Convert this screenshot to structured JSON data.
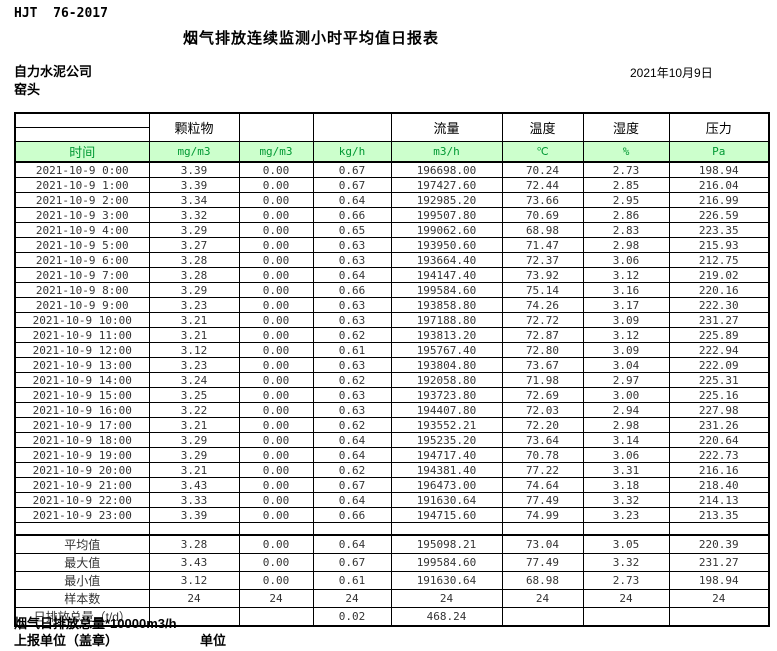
{
  "page": {
    "standard": "HJT  76-2017",
    "title": "烟气排放连续监测小时平均值日报表",
    "company": "自力水泥公司",
    "station": "窑头",
    "date": "2021年10月9日"
  },
  "colors": {
    "header_bg": "#ccffcc",
    "header_text": "#009933",
    "border": "#000000",
    "body_text": "#333333"
  },
  "table": {
    "time_header": "时间",
    "columns": [
      {
        "name": "颗粒物",
        "unit": "mg/m3"
      },
      {
        "name": "",
        "unit": "mg/m3"
      },
      {
        "name": "",
        "unit": "kg/h"
      },
      {
        "name": "流量",
        "unit": "m3/h"
      },
      {
        "name": "温度",
        "unit": "℃"
      },
      {
        "name": "湿度",
        "unit": "%"
      },
      {
        "name": "压力",
        "unit": "Pa"
      }
    ],
    "rows": [
      {
        "time": "2021-10-9 0:00",
        "values": [
          "3.39",
          "0.00",
          "0.67",
          "196698.00",
          "70.24",
          "2.73",
          "198.94"
        ]
      },
      {
        "time": "2021-10-9 1:00",
        "values": [
          "3.39",
          "0.00",
          "0.67",
          "197427.60",
          "72.44",
          "2.85",
          "216.04"
        ]
      },
      {
        "time": "2021-10-9 2:00",
        "values": [
          "3.34",
          "0.00",
          "0.64",
          "192985.20",
          "73.66",
          "2.95",
          "216.99"
        ]
      },
      {
        "time": "2021-10-9 3:00",
        "values": [
          "3.32",
          "0.00",
          "0.66",
          "199507.80",
          "70.69",
          "2.86",
          "226.59"
        ]
      },
      {
        "time": "2021-10-9 4:00",
        "values": [
          "3.29",
          "0.00",
          "0.65",
          "199062.60",
          "68.98",
          "2.83",
          "223.35"
        ]
      },
      {
        "time": "2021-10-9 5:00",
        "values": [
          "3.27",
          "0.00",
          "0.63",
          "193950.60",
          "71.47",
          "2.98",
          "215.93"
        ]
      },
      {
        "time": "2021-10-9 6:00",
        "values": [
          "3.28",
          "0.00",
          "0.63",
          "193664.40",
          "72.37",
          "3.06",
          "212.75"
        ]
      },
      {
        "time": "2021-10-9 7:00",
        "values": [
          "3.28",
          "0.00",
          "0.64",
          "194147.40",
          "73.92",
          "3.12",
          "219.02"
        ]
      },
      {
        "time": "2021-10-9 8:00",
        "values": [
          "3.29",
          "0.00",
          "0.66",
          "199584.60",
          "75.14",
          "3.16",
          "220.16"
        ]
      },
      {
        "time": "2021-10-9 9:00",
        "values": [
          "3.23",
          "0.00",
          "0.63",
          "193858.80",
          "74.26",
          "3.17",
          "222.30"
        ]
      },
      {
        "time": "2021-10-9 10:00",
        "values": [
          "3.21",
          "0.00",
          "0.63",
          "197188.80",
          "72.72",
          "3.09",
          "231.27"
        ]
      },
      {
        "time": "2021-10-9 11:00",
        "values": [
          "3.21",
          "0.00",
          "0.62",
          "193813.20",
          "72.87",
          "3.12",
          "225.89"
        ]
      },
      {
        "time": "2021-10-9 12:00",
        "values": [
          "3.12",
          "0.00",
          "0.61",
          "195767.40",
          "72.80",
          "3.09",
          "222.94"
        ]
      },
      {
        "time": "2021-10-9 13:00",
        "values": [
          "3.23",
          "0.00",
          "0.63",
          "193804.80",
          "73.67",
          "3.04",
          "222.09"
        ]
      },
      {
        "time": "2021-10-9 14:00",
        "values": [
          "3.24",
          "0.00",
          "0.62",
          "192058.80",
          "71.98",
          "2.97",
          "225.31"
        ]
      },
      {
        "time": "2021-10-9 15:00",
        "values": [
          "3.25",
          "0.00",
          "0.63",
          "193723.80",
          "72.69",
          "3.00",
          "225.16"
        ]
      },
      {
        "time": "2021-10-9 16:00",
        "values": [
          "3.22",
          "0.00",
          "0.63",
          "194407.80",
          "72.03",
          "2.94",
          "227.98"
        ]
      },
      {
        "time": "2021-10-9 17:00",
        "values": [
          "3.21",
          "0.00",
          "0.62",
          "193552.21",
          "72.20",
          "2.98",
          "231.26"
        ]
      },
      {
        "time": "2021-10-9 18:00",
        "values": [
          "3.29",
          "0.00",
          "0.64",
          "195235.20",
          "73.64",
          "3.14",
          "220.64"
        ]
      },
      {
        "time": "2021-10-9 19:00",
        "values": [
          "3.29",
          "0.00",
          "0.64",
          "194717.40",
          "70.78",
          "3.06",
          "222.73"
        ]
      },
      {
        "time": "2021-10-9 20:00",
        "values": [
          "3.21",
          "0.00",
          "0.62",
          "194381.40",
          "77.22",
          "3.31",
          "216.16"
        ]
      },
      {
        "time": "2021-10-9 21:00",
        "values": [
          "3.43",
          "0.00",
          "0.67",
          "196473.00",
          "74.64",
          "3.18",
          "218.40"
        ]
      },
      {
        "time": "2021-10-9 22:00",
        "values": [
          "3.33",
          "0.00",
          "0.64",
          "191630.64",
          "77.49",
          "3.32",
          "214.13"
        ]
      },
      {
        "time": "2021-10-9 23:00",
        "values": [
          "3.39",
          "0.00",
          "0.66",
          "194715.60",
          "74.99",
          "3.23",
          "213.35"
        ]
      }
    ],
    "summary": [
      {
        "label": "平均值",
        "values": [
          "3.28",
          "0.00",
          "0.64",
          "195098.21",
          "73.04",
          "3.05",
          "220.39"
        ]
      },
      {
        "label": "最大值",
        "values": [
          "3.43",
          "0.00",
          "0.67",
          "199584.60",
          "77.49",
          "3.32",
          "231.27"
        ]
      },
      {
        "label": "最小值",
        "values": [
          "3.12",
          "0.00",
          "0.61",
          "191630.64",
          "68.98",
          "2.73",
          "198.94"
        ]
      },
      {
        "label": "样本数",
        "values": [
          "24",
          "24",
          "24",
          "24",
          "24",
          "24",
          "24"
        ]
      },
      {
        "label": "日排放总量（t/d）",
        "values": [
          "",
          "",
          "0.02",
          "468.24",
          "",
          "",
          ""
        ]
      }
    ]
  },
  "footer": {
    "note": "烟气日排放总量*10000m3/h",
    "report_unit_label": "上报单位（盖章）",
    "unit_label": "单位"
  }
}
